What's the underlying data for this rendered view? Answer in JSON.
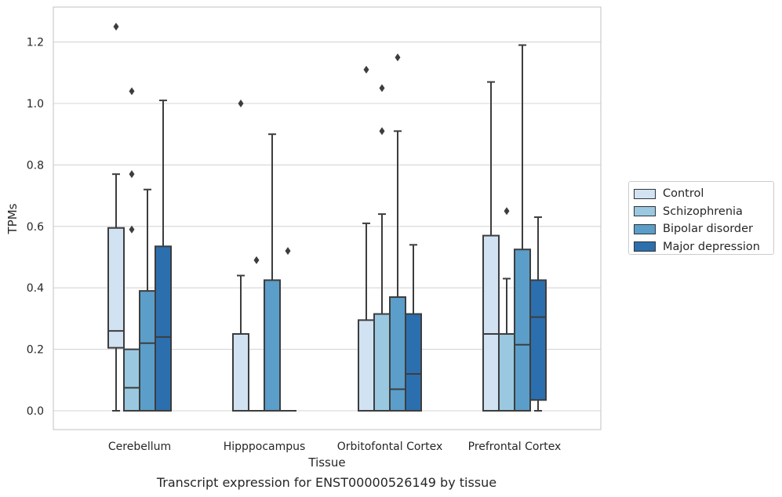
{
  "chart_data": {
    "type": "boxplot",
    "title": "",
    "caption": "Transcript expression for ENST00000526149 by tissue",
    "xlabel": "Tissue",
    "ylabel": "TPMs",
    "ylim": [
      -0.06,
      1.32
    ],
    "yticks": [
      0.0,
      0.2,
      0.4,
      0.6,
      0.8,
      1.0,
      1.2
    ],
    "ytick_labels": [
      "0.0",
      "0.2",
      "0.4",
      "0.6",
      "0.8",
      "1.0",
      "1.2"
    ],
    "grid": true,
    "legend_position": "right",
    "categories": [
      "Cerebellum",
      "Hipppocampus",
      "Orbitofontal Cortex",
      "Prefrontal Cortex"
    ],
    "series": [
      {
        "name": "Control",
        "color": "#d1e2f2",
        "boxes": [
          {
            "whislo": 0.0,
            "q1": 0.205,
            "med": 0.26,
            "q3": 0.595,
            "whishi": 0.77,
            "fliers": [
              1.25
            ]
          },
          {
            "whislo": 0.0,
            "q1": 0.0,
            "med": 0.0,
            "q3": 0.25,
            "whishi": 0.44,
            "fliers": [
              1.0
            ]
          },
          {
            "whislo": 0.0,
            "q1": 0.0,
            "med": 0.0,
            "q3": 0.295,
            "whishi": 0.61,
            "fliers": [
              1.11
            ]
          },
          {
            "whislo": 0.0,
            "q1": 0.0,
            "med": 0.25,
            "q3": 0.57,
            "whishi": 1.07,
            "fliers": []
          }
        ]
      },
      {
        "name": "Schizophrenia",
        "color": "#9ac8e0",
        "boxes": [
          {
            "whislo": 0.0,
            "q1": 0.0,
            "med": 0.075,
            "q3": 0.2,
            "whishi": 0.2,
            "fliers": [
              0.59,
              0.77,
              1.04
            ]
          },
          {
            "whislo": 0.0,
            "q1": 0.0,
            "med": 0.0,
            "q3": 0.0,
            "whishi": 0.0,
            "fliers": [
              0.49
            ]
          },
          {
            "whislo": 0.0,
            "q1": 0.0,
            "med": 0.0,
            "q3": 0.315,
            "whishi": 0.64,
            "fliers": [
              0.91,
              1.05
            ]
          },
          {
            "whislo": 0.0,
            "q1": 0.0,
            "med": 0.0,
            "q3": 0.25,
            "whishi": 0.43,
            "fliers": [
              0.65
            ]
          }
        ]
      },
      {
        "name": "Bipolar disorder",
        "color": "#5a9ec9",
        "boxes": [
          {
            "whislo": 0.0,
            "q1": 0.0,
            "med": 0.22,
            "q3": 0.39,
            "whishi": 0.72,
            "fliers": []
          },
          {
            "whislo": 0.0,
            "q1": 0.0,
            "med": 0.0,
            "q3": 0.425,
            "whishi": 0.9,
            "fliers": []
          },
          {
            "whislo": 0.0,
            "q1": 0.0,
            "med": 0.07,
            "q3": 0.37,
            "whishi": 0.91,
            "fliers": [
              1.15
            ]
          },
          {
            "whislo": 0.0,
            "q1": 0.0,
            "med": 0.215,
            "q3": 0.525,
            "whishi": 1.19,
            "fliers": []
          }
        ]
      },
      {
        "name": "Major depression",
        "color": "#2c6faf",
        "boxes": [
          {
            "whislo": 0.0,
            "q1": 0.0,
            "med": 0.24,
            "q3": 0.535,
            "whishi": 1.01,
            "fliers": []
          },
          {
            "whislo": 0.0,
            "q1": 0.0,
            "med": 0.0,
            "q3": 0.0,
            "whishi": 0.0,
            "fliers": [
              0.52
            ]
          },
          {
            "whislo": 0.0,
            "q1": 0.0,
            "med": 0.12,
            "q3": 0.315,
            "whishi": 0.54,
            "fliers": []
          },
          {
            "whislo": 0.0,
            "q1": 0.035,
            "med": 0.305,
            "q3": 0.425,
            "whishi": 0.63,
            "fliers": []
          }
        ]
      }
    ]
  }
}
